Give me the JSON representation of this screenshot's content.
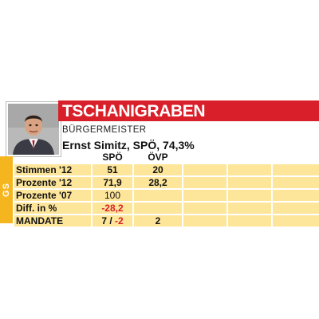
{
  "municipality": "TSCHANIGRABEN",
  "role": "BÜRGERMEISTER",
  "mayor": "Ernst Simitz, SPÖ, 74,3%",
  "side_label": "GS",
  "colors": {
    "accent_red": "#d9202a",
    "row_yellow": "#fde59a",
    "sidebar_orange": "#f5b51f"
  },
  "columns": [
    "SPÖ",
    "ÖVP"
  ],
  "rows": [
    {
      "label": "Stimmen '12",
      "spo": "51",
      "ovp": "20"
    },
    {
      "label": "Prozente '12",
      "spo": "71,9",
      "ovp": "28,2"
    },
    {
      "label": "Prozente '07",
      "spo": "100",
      "ovp": ""
    },
    {
      "label": "Diff. in %",
      "spo": "-28,2",
      "ovp": ""
    },
    {
      "label": "MANDATE",
      "spo_a": "7",
      "sep": " / ",
      "spo_b": "-2",
      "ovp": "2"
    }
  ]
}
